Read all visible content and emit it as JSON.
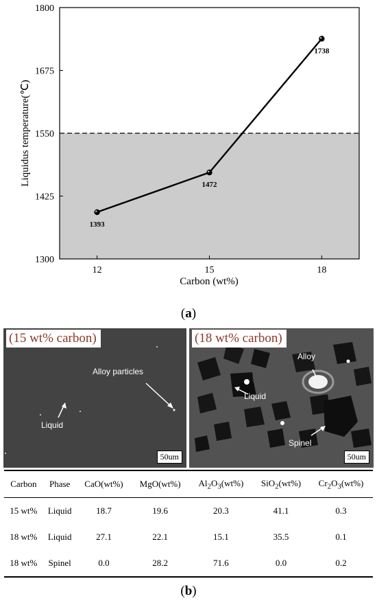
{
  "chart_data": {
    "type": "line",
    "title": "",
    "xlabel": "Carbon (wt%)",
    "ylabel": "Liquidus temperature(℃)",
    "x": [
      12,
      15,
      18
    ],
    "x_tick_labels": [
      "12",
      "15",
      "18"
    ],
    "y_ticks": [
      1300,
      1425,
      1550,
      1675,
      1800
    ],
    "y_tick_labels": [
      "1300",
      "1425",
      "1550",
      "1675",
      "1800"
    ],
    "xlim": [
      11,
      19
    ],
    "ylim": [
      1300,
      1800
    ],
    "series": [
      {
        "values": [
          1393,
          1472,
          1738
        ]
      }
    ],
    "data_labels": [
      "1393",
      "1472",
      "1738"
    ],
    "reference_line": {
      "y": 1550,
      "style": "dashed"
    },
    "shaded_region": {
      "y_from": 1300,
      "y_to": 1550,
      "color": "#cccccc"
    },
    "grid": false,
    "legend": "none"
  },
  "figure": {
    "caption_a_letter": "a",
    "caption_b_letter": "b",
    "panel_left": {
      "title": "(15 wt% carbon)",
      "labels": {
        "alloy": "Alloy particles",
        "liquid": "Liquid"
      },
      "scale": "50um"
    },
    "panel_right": {
      "title": "(18 wt% carbon)",
      "labels": {
        "alloy": "Alloy",
        "liquid": "Liquid",
        "spinel": "Spinel"
      },
      "scale": "50um"
    },
    "colors": {
      "title_text": "#8b3a26",
      "shade": "#cccccc"
    }
  },
  "table": {
    "headers": [
      "Carbon",
      "Phase",
      "CaO(wt%)",
      "MgO(wt%)",
      "Al",
      "SiO",
      "Cr"
    ],
    "rows": [
      [
        "15 wt%",
        "Liquid",
        "18.7",
        "19.6",
        "20.3",
        "41.1",
        "0.3"
      ],
      [
        "18 wt%",
        "Liquid",
        "27.1",
        "22.1",
        "15.1",
        "35.5",
        "0.1"
      ],
      [
        "18 wt%",
        "Spinel",
        "0.0",
        "28.2",
        "71.6",
        "0.0",
        "0.2"
      ]
    ]
  }
}
